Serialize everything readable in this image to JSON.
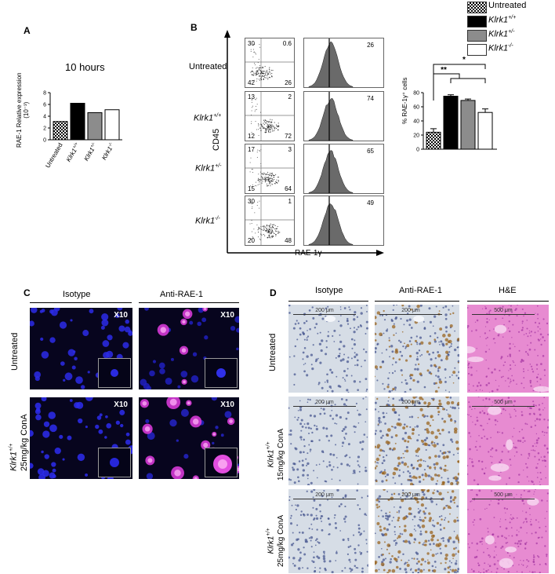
{
  "panelA": {
    "label": "A",
    "title": "10 hours",
    "ylabel_line1": "RAE-1 Relative expression",
    "ylabel_line2": "(10⁻³)",
    "yticks": [
      "0",
      "2",
      "4",
      "6",
      "8"
    ],
    "categories": [
      "Untreated",
      "Klrk1+/+",
      "Klrk1+/-",
      "Klrk1-/-"
    ]
  },
  "panelB": {
    "label": "B",
    "yaxis": "CD45",
    "xaxis": "RAE-1γ",
    "rows": [
      {
        "name": "Untreated",
        "tl": "30",
        "tr": "0.6",
        "bl": "42",
        "br": "26",
        "hist": "26"
      },
      {
        "name": "Klrk1+/+",
        "tl": "13",
        "tr": "2",
        "bl": "12",
        "br": "72",
        "hist": "74"
      },
      {
        "name": "Klrk1+/-",
        "tl": "17",
        "tr": "3",
        "bl": "15",
        "br": "64",
        "hist": "65"
      },
      {
        "name": "Klrk1-/-",
        "tl": "30",
        "tr": "1",
        "bl": "20",
        "br": "48",
        "hist": "49"
      }
    ],
    "bar_ylabel": "% RAE-1γ⁺ cells",
    "bar_yticks": [
      "0",
      "20",
      "40",
      "60",
      "80"
    ],
    "sig1": "*",
    "sig2": "**"
  },
  "legend": {
    "items": [
      {
        "label": "Untreated",
        "color": "checker"
      },
      {
        "label": "Klrk1+/+",
        "color": "#000000"
      },
      {
        "label": "Klrk1+/-",
        "color": "#8c8c8c"
      },
      {
        "label": "Klrk1-/-",
        "color": "#ffffff"
      }
    ]
  },
  "panelC": {
    "label": "C",
    "col1": "Isotype",
    "col2": "Anti-RAE-1",
    "mag": "X10",
    "row1": "Untreated",
    "row2_geno": "Klrk1+/+",
    "row2_dose": "25mg/kg ConA"
  },
  "panelD": {
    "label": "D",
    "col1": "Isotype",
    "col2": "Anti-RAE-1",
    "col3": "H&E",
    "scale1": "200 μm",
    "scale2": "500 μm",
    "row1": "Untreated",
    "row2_geno": "Klrk1+/+",
    "row2_dose": "15mg/kg ConA",
    "row3_geno": "Klrk1+/+",
    "row3_dose": "25mg/kg ConA"
  },
  "chart_data": [
    {
      "type": "bar",
      "title": "10 hours",
      "categories": [
        "Untreated",
        "Klrk1+/+",
        "Klrk1+/-",
        "Klrk1-/-"
      ],
      "values": [
        3.1,
        6.2,
        4.6,
        5.1
      ],
      "ylabel": "RAE-1 Relative expression (10⁻³)",
      "ylim": [
        0,
        8
      ],
      "colors": [
        "checker",
        "#000000",
        "#8c8c8c",
        "#ffffff"
      ]
    },
    {
      "type": "bar",
      "categories": [
        "Untreated",
        "Klrk1+/+",
        "Klrk1+/-",
        "Klrk1-/-"
      ],
      "values": [
        24,
        75,
        69,
        52
      ],
      "errors": [
        5,
        2,
        2,
        5
      ],
      "ylabel": "% RAE-1γ⁺ cells",
      "ylim": [
        0,
        80
      ],
      "colors": [
        "checker",
        "#000000",
        "#8c8c8c",
        "#ffffff"
      ],
      "annotations": [
        "*",
        "**"
      ]
    }
  ]
}
